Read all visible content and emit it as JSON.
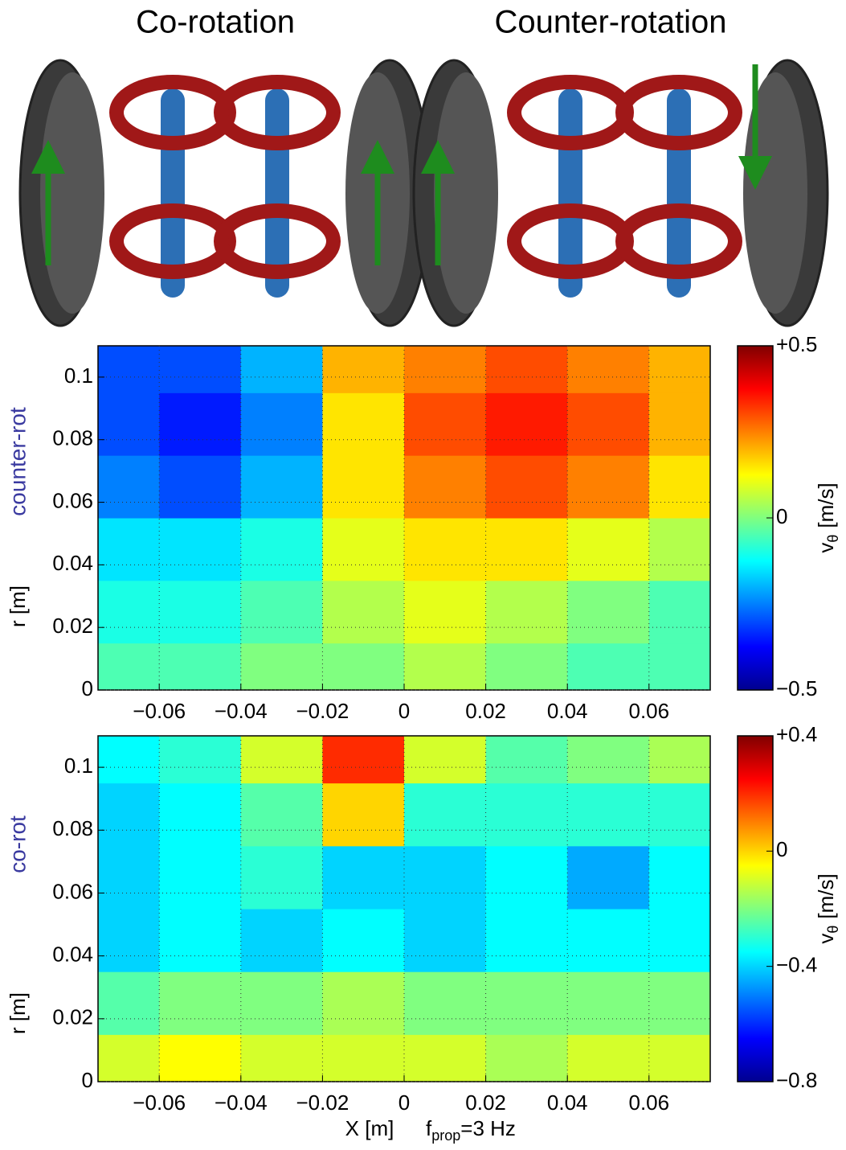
{
  "illustration": {
    "labels": [
      "Co-rotation",
      "Counter-rotation"
    ]
  },
  "chart_data": [
    {
      "type": "heatmap",
      "side_label": "counter-rot",
      "ylabel": "r [m]",
      "colorbar_label": {
        "symbol": "v",
        "subscript": "θ",
        "unit": "[m/s]"
      },
      "x": [
        -0.07,
        -0.05,
        -0.03,
        -0.01,
        0.01,
        0.03,
        0.05,
        0.07
      ],
      "y": [
        0.005,
        0.025,
        0.045,
        0.065,
        0.085,
        0.105
      ],
      "z": [
        [
          -0.05,
          -0.05,
          0,
          0,
          0.05,
          0,
          -0.05,
          -0.05
        ],
        [
          -0.1,
          -0.1,
          -0.05,
          0.05,
          0.1,
          0.05,
          0,
          -0.05
        ],
        [
          -0.15,
          -0.15,
          -0.1,
          0.1,
          0.15,
          0.15,
          0.1,
          0.05
        ],
        [
          -0.25,
          -0.3,
          -0.2,
          0.15,
          0.25,
          0.3,
          0.25,
          0.15
        ],
        [
          -0.3,
          -0.35,
          -0.25,
          0.15,
          0.3,
          0.35,
          0.3,
          0.2
        ],
        [
          -0.3,
          -0.3,
          -0.2,
          0.2,
          0.25,
          0.3,
          0.25,
          0.2
        ]
      ],
      "xlim": [
        -0.075,
        0.075
      ],
      "ylim": [
        0,
        0.11
      ],
      "clim": [
        -0.5,
        0.5
      ],
      "xticks": [
        {
          "value": -0.06,
          "label": "−0.06"
        },
        {
          "value": -0.04,
          "label": "−0.04"
        },
        {
          "value": -0.02,
          "label": "−0.02"
        },
        0,
        0.02,
        0.04,
        0.06
      ],
      "yticks": [
        0,
        0.02,
        0.04,
        0.06,
        0.08,
        0.1
      ],
      "cticks": [
        {
          "value": -0.5,
          "label": "−0.5"
        },
        0,
        {
          "value": 0.5,
          "label": "+0.5"
        }
      ],
      "grid": true,
      "colormap": "jet"
    },
    {
      "type": "heatmap",
      "side_label": "co-rot",
      "ylabel": "r [m]",
      "xlabel": "X [m]",
      "annotation": {
        "symbol": "f",
        "subscript": "prop",
        "text": "=3 Hz"
      },
      "colorbar_label": {
        "symbol": "v",
        "subscript": "θ",
        "unit": "[m/s]"
      },
      "x": [
        -0.07,
        -0.05,
        -0.03,
        -0.01,
        0.01,
        0.03,
        0.05,
        0.07
      ],
      "y": [
        0.005,
        0.025,
        0.045,
        0.065,
        0.085,
        0.105
      ],
      "z": [
        [
          -0.1,
          -0.05,
          -0.1,
          -0.1,
          -0.1,
          -0.15,
          -0.1,
          -0.1
        ],
        [
          -0.25,
          -0.2,
          -0.2,
          -0.15,
          -0.2,
          -0.2,
          -0.2,
          -0.2
        ],
        [
          -0.4,
          -0.35,
          -0.4,
          -0.35,
          -0.4,
          -0.35,
          -0.35,
          -0.35
        ],
        [
          -0.4,
          -0.35,
          -0.3,
          -0.4,
          -0.4,
          -0.35,
          -0.45,
          -0.35
        ],
        [
          -0.4,
          -0.35,
          -0.25,
          0,
          -0.3,
          -0.3,
          -0.3,
          -0.3
        ],
        [
          -0.35,
          -0.3,
          -0.1,
          0.2,
          -0.1,
          -0.25,
          -0.2,
          -0.15
        ]
      ],
      "xlim": [
        -0.075,
        0.075
      ],
      "ylim": [
        0,
        0.11
      ],
      "clim": [
        -0.8,
        0.4
      ],
      "xticks": [
        {
          "value": -0.06,
          "label": "−0.06"
        },
        {
          "value": -0.04,
          "label": "−0.04"
        },
        {
          "value": -0.02,
          "label": "−0.02"
        },
        0,
        0.02,
        0.04,
        0.06
      ],
      "yticks": [
        0,
        0.02,
        0.04,
        0.06,
        0.08,
        0.1
      ],
      "cticks": [
        {
          "value": -0.8,
          "label": "−0.8"
        },
        {
          "value": -0.4,
          "label": "−0.4"
        },
        0,
        {
          "value": 0.4,
          "label": "+0.4"
        }
      ],
      "grid": true,
      "colormap": "jet"
    }
  ]
}
